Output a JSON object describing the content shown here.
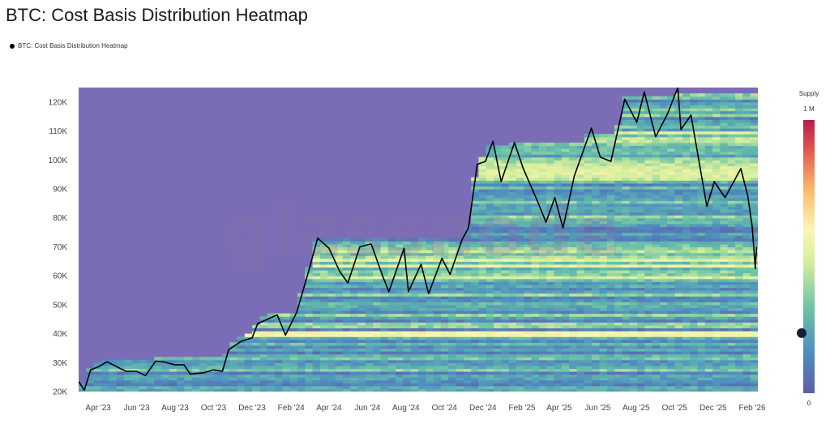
{
  "header": {
    "title": "BTC: Cost Basis Distribution Heatmap"
  },
  "legend": {
    "series_label": "BTC: Cost Basis Distribution Heatmap"
  },
  "watermark": "glassnode",
  "colorbar": {
    "title": "Supply",
    "max_label": "1 M",
    "min_label": "0",
    "marker_value_fraction": 0.22
  },
  "colors": {
    "background_fill": "#7b6db5",
    "line": "#000000"
  },
  "chart_data": {
    "type": "heatmap",
    "title": "BTC: Cost Basis Distribution Heatmap",
    "xlabel": "",
    "ylabel": "",
    "ylim": [
      20000,
      125000
    ],
    "x_range": [
      "2023-03-01",
      "2026-02-10"
    ],
    "y_ticks": [
      {
        "value": 20000,
        "label": "20K"
      },
      {
        "value": 30000,
        "label": "30K"
      },
      {
        "value": 40000,
        "label": "40K"
      },
      {
        "value": 50000,
        "label": "50K"
      },
      {
        "value": 60000,
        "label": "60K"
      },
      {
        "value": 70000,
        "label": "70K"
      },
      {
        "value": 80000,
        "label": "80K"
      },
      {
        "value": 90000,
        "label": "90K"
      },
      {
        "value": 100000,
        "label": "100K"
      },
      {
        "value": 110000,
        "label": "110K"
      },
      {
        "value": 120000,
        "label": "120K"
      }
    ],
    "x_ticks": [
      {
        "date": "2023-04-01",
        "label": "Apr '23"
      },
      {
        "date": "2023-06-01",
        "label": "Jun '23"
      },
      {
        "date": "2023-08-01",
        "label": "Aug '23"
      },
      {
        "date": "2023-10-01",
        "label": "Oct '23"
      },
      {
        "date": "2023-12-01",
        "label": "Dec '23"
      },
      {
        "date": "2024-02-01",
        "label": "Feb '24"
      },
      {
        "date": "2024-04-01",
        "label": "Apr '24"
      },
      {
        "date": "2024-06-01",
        "label": "Jun '24"
      },
      {
        "date": "2024-08-01",
        "label": "Aug '24"
      },
      {
        "date": "2024-10-01",
        "label": "Oct '24"
      },
      {
        "date": "2024-12-01",
        "label": "Dec '24"
      },
      {
        "date": "2025-02-01",
        "label": "Feb '25"
      },
      {
        "date": "2025-04-01",
        "label": "Apr '25"
      },
      {
        "date": "2025-06-01",
        "label": "Jun '25"
      },
      {
        "date": "2025-08-01",
        "label": "Aug '25"
      },
      {
        "date": "2025-10-01",
        "label": "Oct '25"
      },
      {
        "date": "2025-12-01",
        "label": "Dec '25"
      },
      {
        "date": "2026-02-01",
        "label": "Feb '26"
      }
    ],
    "colorscale": {
      "min": 0,
      "max": 1000000,
      "label": "Supply",
      "stops": [
        "#5e5ea8",
        "#4f8dc0",
        "#67c0a8",
        "#d6ee9b",
        "#fbf6b4",
        "#f8b86a",
        "#e0504e",
        "#b41e4a"
      ]
    },
    "line": {
      "name": "BTC price",
      "points": [
        [
          "2023-03-01",
          23500
        ],
        [
          "2023-03-10",
          20500
        ],
        [
          "2023-03-20",
          27500
        ],
        [
          "2023-04-01",
          28500
        ],
        [
          "2023-04-15",
          30300
        ],
        [
          "2023-05-01",
          28500
        ],
        [
          "2023-05-15",
          27000
        ],
        [
          "2023-06-01",
          27000
        ],
        [
          "2023-06-15",
          25500
        ],
        [
          "2023-07-01",
          30500
        ],
        [
          "2023-07-15",
          30200
        ],
        [
          "2023-08-01",
          29200
        ],
        [
          "2023-08-15",
          29300
        ],
        [
          "2023-08-25",
          26000
        ],
        [
          "2023-09-15",
          26500
        ],
        [
          "2023-10-01",
          27500
        ],
        [
          "2023-10-15",
          27000
        ],
        [
          "2023-10-25",
          34500
        ],
        [
          "2023-11-15",
          37500
        ],
        [
          "2023-12-01",
          38500
        ],
        [
          "2023-12-10",
          43500
        ],
        [
          "2024-01-10",
          46500
        ],
        [
          "2024-01-23",
          39500
        ],
        [
          "2024-02-10",
          47500
        ],
        [
          "2024-02-28",
          61000
        ],
        [
          "2024-03-14",
          73000
        ],
        [
          "2024-04-01",
          69500
        ],
        [
          "2024-04-18",
          61500
        ],
        [
          "2024-05-01",
          57500
        ],
        [
          "2024-05-20",
          70000
        ],
        [
          "2024-06-07",
          71000
        ],
        [
          "2024-06-24",
          60500
        ],
        [
          "2024-07-05",
          54500
        ],
        [
          "2024-07-29",
          69500
        ],
        [
          "2024-08-05",
          54500
        ],
        [
          "2024-08-25",
          64000
        ],
        [
          "2024-09-06",
          53800
        ],
        [
          "2024-09-27",
          66000
        ],
        [
          "2024-10-10",
          60500
        ],
        [
          "2024-10-29",
          72500
        ],
        [
          "2024-11-08",
          76500
        ],
        [
          "2024-11-22",
          98500
        ],
        [
          "2024-12-05",
          99500
        ],
        [
          "2024-12-17",
          106500
        ],
        [
          "2024-12-30",
          92500
        ],
        [
          "2025-01-20",
          106000
        ],
        [
          "2025-02-03",
          97000
        ],
        [
          "2025-02-25",
          86000
        ],
        [
          "2025-03-11",
          78500
        ],
        [
          "2025-03-25",
          87000
        ],
        [
          "2025-04-07",
          76500
        ],
        [
          "2025-04-25",
          94500
        ],
        [
          "2025-05-22",
          111000
        ],
        [
          "2025-06-05",
          101000
        ],
        [
          "2025-06-22",
          99500
        ],
        [
          "2025-07-14",
          121000
        ],
        [
          "2025-08-02",
          113000
        ],
        [
          "2025-08-14",
          123500
        ],
        [
          "2025-09-01",
          108000
        ],
        [
          "2025-09-20",
          116000
        ],
        [
          "2025-10-06",
          125000
        ],
        [
          "2025-10-11",
          110500
        ],
        [
          "2025-10-27",
          115500
        ],
        [
          "2025-11-21",
          84000
        ],
        [
          "2025-12-03",
          92500
        ],
        [
          "2025-12-20",
          87000
        ],
        [
          "2026-01-14",
          97000
        ],
        [
          "2026-01-25",
          87500
        ],
        [
          "2026-02-01",
          77000
        ],
        [
          "2026-02-06",
          62500
        ],
        [
          "2026-02-08",
          70000
        ]
      ]
    }
  }
}
